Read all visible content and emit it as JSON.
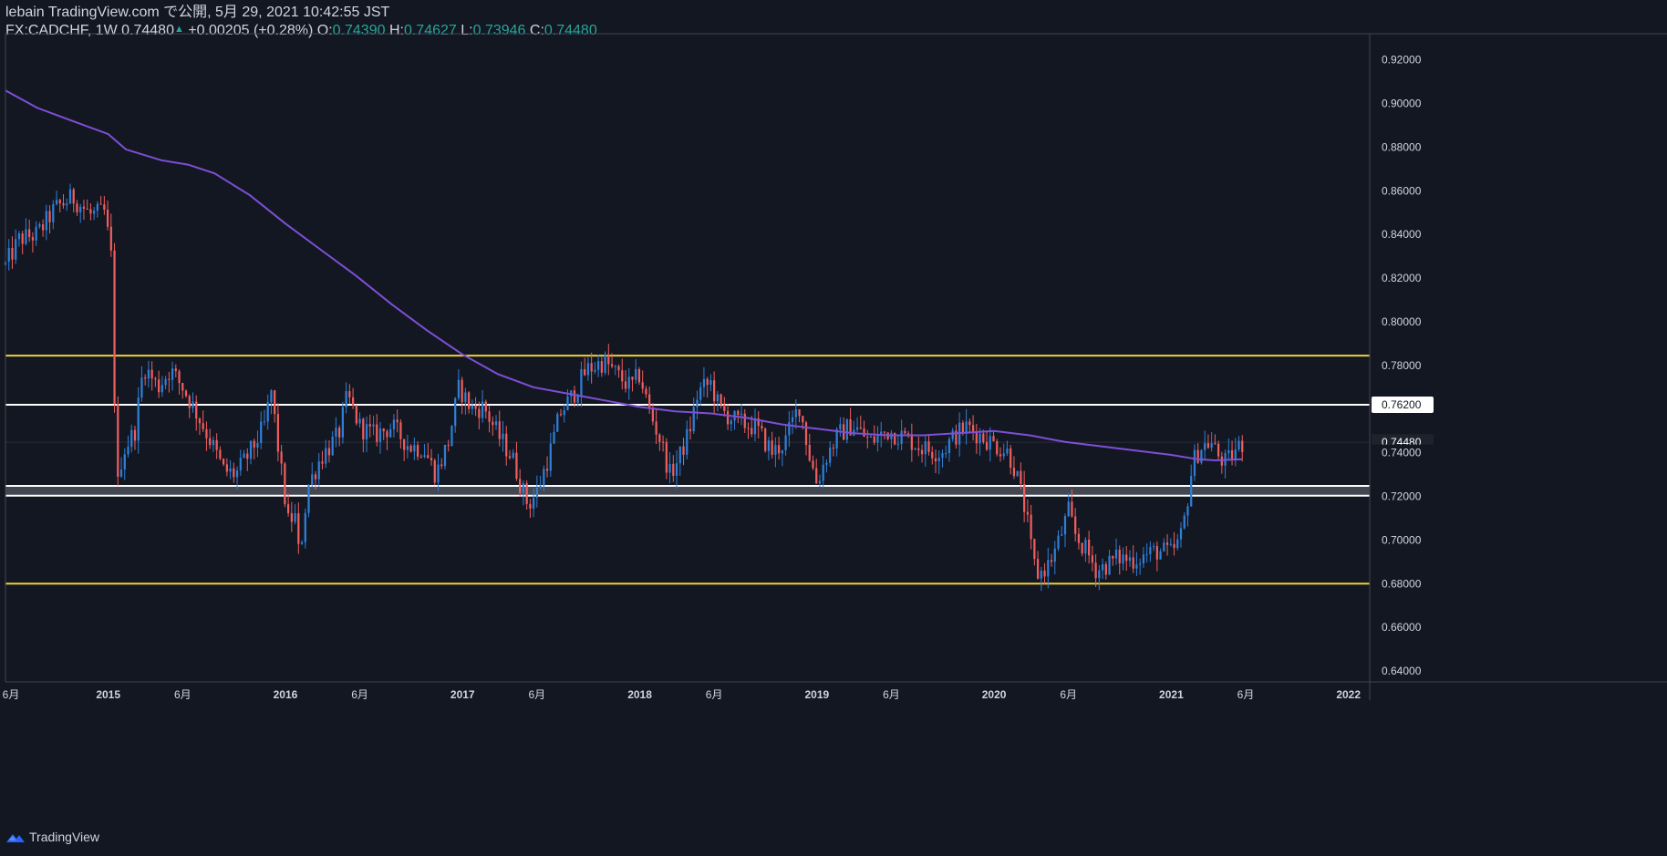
{
  "header": {
    "line1": "lebain TradingView.com で公開, 5月 29, 2021 10:42:55 JST",
    "symbol": "FX:CADCHF, 1W",
    "last": "0.74480",
    "change_arrow": "▲",
    "change": "+0.00205 (+0.28%)",
    "o_label": "O:",
    "o_value": "0.74390",
    "h_label": "H:",
    "h_value": "0.74627",
    "l_label": "L:",
    "l_value": "0.73946",
    "c_label": "C:",
    "c_value": "0.74480"
  },
  "footer": {
    "brand": "TradingView"
  },
  "colors": {
    "background": "#131722",
    "up": "#2f7fd6",
    "down": "#ef5e5e",
    "ma": "#7e4fd6",
    "yellow_line": "#f0d03a",
    "white_line": "#ffffff",
    "gray_band": "#6b6f7a",
    "text": "#d1d4dc",
    "accent": "#26a69a"
  },
  "chart_data": {
    "type": "candlestick",
    "title": "FX:CADCHF, 1W",
    "ylim": [
      0.635,
      0.932
    ],
    "y_ticks": [
      "0.92000",
      "0.90000",
      "0.88000",
      "0.86000",
      "0.84000",
      "0.82000",
      "0.80000",
      "0.78000",
      "0.76000",
      "0.74000",
      "0.72000",
      "0.70000",
      "0.68000",
      "0.66000",
      "0.64000"
    ],
    "x_ticks": [
      {
        "label": "6月",
        "t": 2014.42
      },
      {
        "label": "2015",
        "t": 2015.0
      },
      {
        "label": "6月",
        "t": 2015.42
      },
      {
        "label": "2016",
        "t": 2016.0
      },
      {
        "label": "6月",
        "t": 2016.42
      },
      {
        "label": "2017",
        "t": 2017.0
      },
      {
        "label": "6月",
        "t": 2017.42
      },
      {
        "label": "2018",
        "t": 2018.0
      },
      {
        "label": "6月",
        "t": 2018.42
      },
      {
        "label": "2019",
        "t": 2019.0
      },
      {
        "label": "6月",
        "t": 2019.42
      },
      {
        "label": "2020",
        "t": 2020.0
      },
      {
        "label": "6月",
        "t": 2020.42
      },
      {
        "label": "2021",
        "t": 2021.0
      },
      {
        "label": "6月",
        "t": 2021.42
      },
      {
        "label": "2022",
        "t": 2022.0
      }
    ],
    "xlim": [
      2014.42,
      2022.12
    ],
    "price_labels": [
      {
        "value": 0.762,
        "text": "0.76200",
        "style": "white"
      },
      {
        "value": 0.7448,
        "text": "0.74480",
        "style": "dark"
      },
      {
        "value": 0.74,
        "text": "0.74000",
        "style": "plain"
      }
    ],
    "horizontal_lines": [
      {
        "value": 0.7845,
        "color": "yellow"
      },
      {
        "value": 0.762,
        "color": "white"
      },
      {
        "value": 0.7248,
        "color": "white"
      },
      {
        "value": 0.7203,
        "color": "white"
      },
      {
        "value": 0.68,
        "color": "yellow"
      }
    ],
    "band": [
      0.7203,
      0.7248
    ],
    "ma_series": {
      "name": "",
      "points": [
        [
          2014.42,
          0.906
        ],
        [
          2014.6,
          0.898
        ],
        [
          2014.8,
          0.892
        ],
        [
          2015.0,
          0.886
        ],
        [
          2015.1,
          0.879
        ],
        [
          2015.3,
          0.874
        ],
        [
          2015.45,
          0.872
        ],
        [
          2015.6,
          0.868
        ],
        [
          2015.8,
          0.858
        ],
        [
          2016.0,
          0.845
        ],
        [
          2016.2,
          0.833
        ],
        [
          2016.4,
          0.821
        ],
        [
          2016.6,
          0.808
        ],
        [
          2016.8,
          0.796
        ],
        [
          2017.0,
          0.785
        ],
        [
          2017.2,
          0.776
        ],
        [
          2017.4,
          0.77
        ],
        [
          2017.6,
          0.767
        ],
        [
          2017.8,
          0.764
        ],
        [
          2018.0,
          0.761
        ],
        [
          2018.2,
          0.759
        ],
        [
          2018.4,
          0.758
        ],
        [
          2018.6,
          0.756
        ],
        [
          2018.8,
          0.753
        ],
        [
          2019.0,
          0.751
        ],
        [
          2019.2,
          0.749
        ],
        [
          2019.4,
          0.748
        ],
        [
          2019.6,
          0.748
        ],
        [
          2019.8,
          0.749
        ],
        [
          2020.0,
          0.75
        ],
        [
          2020.2,
          0.748
        ],
        [
          2020.4,
          0.745
        ],
        [
          2020.6,
          0.743
        ],
        [
          2020.8,
          0.741
        ],
        [
          2021.0,
          0.739
        ],
        [
          2021.15,
          0.737
        ],
        [
          2021.25,
          0.7365
        ],
        [
          2021.4,
          0.737
        ]
      ]
    },
    "anchors": [
      [
        2014.42,
        0.826
      ],
      [
        2014.5,
        0.838
      ],
      [
        2014.6,
        0.84
      ],
      [
        2014.7,
        0.852
      ],
      [
        2014.8,
        0.857
      ],
      [
        2014.9,
        0.849
      ],
      [
        2014.98,
        0.85
      ],
      [
        2015.03,
        0.822
      ],
      [
        2015.04,
        0.717
      ],
      [
        2015.08,
        0.74
      ],
      [
        2015.15,
        0.75
      ],
      [
        2015.2,
        0.78
      ],
      [
        2015.28,
        0.77
      ],
      [
        2015.35,
        0.778
      ],
      [
        2015.42,
        0.77
      ],
      [
        2015.5,
        0.758
      ],
      [
        2015.58,
        0.745
      ],
      [
        2015.65,
        0.732
      ],
      [
        2015.72,
        0.73
      ],
      [
        2015.8,
        0.74
      ],
      [
        2015.88,
        0.752
      ],
      [
        2015.92,
        0.768
      ],
      [
        2015.97,
        0.735
      ],
      [
        2016.02,
        0.706
      ],
      [
        2016.05,
        0.714
      ],
      [
        2016.08,
        0.69
      ],
      [
        2016.1,
        0.708
      ],
      [
        2016.13,
        0.725
      ],
      [
        2016.2,
        0.738
      ],
      [
        2016.3,
        0.748
      ],
      [
        2016.35,
        0.766
      ],
      [
        2016.42,
        0.752
      ],
      [
        2016.5,
        0.748
      ],
      [
        2016.6,
        0.752
      ],
      [
        2016.7,
        0.743
      ],
      [
        2016.78,
        0.742
      ],
      [
        2016.85,
        0.73
      ],
      [
        2016.92,
        0.745
      ],
      [
        2016.98,
        0.77
      ],
      [
        2017.05,
        0.76
      ],
      [
        2017.12,
        0.761
      ],
      [
        2017.2,
        0.748
      ],
      [
        2017.28,
        0.738
      ],
      [
        2017.33,
        0.725
      ],
      [
        2017.37,
        0.716
      ],
      [
        2017.42,
        0.722
      ],
      [
        2017.5,
        0.742
      ],
      [
        2017.55,
        0.758
      ],
      [
        2017.62,
        0.766
      ],
      [
        2017.7,
        0.778
      ],
      [
        2017.8,
        0.782
      ],
      [
        2017.88,
        0.775
      ],
      [
        2017.95,
        0.77
      ],
      [
        2018.0,
        0.776
      ],
      [
        2018.05,
        0.76
      ],
      [
        2018.12,
        0.745
      ],
      [
        2018.17,
        0.73
      ],
      [
        2018.22,
        0.737
      ],
      [
        2018.28,
        0.75
      ],
      [
        2018.33,
        0.768
      ],
      [
        2018.4,
        0.772
      ],
      [
        2018.45,
        0.76
      ],
      [
        2018.55,
        0.754
      ],
      [
        2018.65,
        0.752
      ],
      [
        2018.75,
        0.74
      ],
      [
        2018.82,
        0.745
      ],
      [
        2018.9,
        0.762
      ],
      [
        2018.96,
        0.738
      ],
      [
        2019.0,
        0.726
      ],
      [
        2019.05,
        0.738
      ],
      [
        2019.12,
        0.748
      ],
      [
        2019.2,
        0.753
      ],
      [
        2019.3,
        0.745
      ],
      [
        2019.4,
        0.75
      ],
      [
        2019.5,
        0.747
      ],
      [
        2019.6,
        0.742
      ],
      [
        2019.7,
        0.74
      ],
      [
        2019.78,
        0.748
      ],
      [
        2019.85,
        0.752
      ],
      [
        2019.92,
        0.748
      ],
      [
        2020.0,
        0.744
      ],
      [
        2020.08,
        0.74
      ],
      [
        2020.12,
        0.732
      ],
      [
        2020.18,
        0.712
      ],
      [
        2020.22,
        0.69
      ],
      [
        2020.25,
        0.684
      ],
      [
        2020.3,
        0.688
      ],
      [
        2020.35,
        0.696
      ],
      [
        2020.42,
        0.713
      ],
      [
        2020.46,
        0.702
      ],
      [
        2020.52,
        0.695
      ],
      [
        2020.58,
        0.686
      ],
      [
        2020.62,
        0.688
      ],
      [
        2020.7,
        0.692
      ],
      [
        2020.78,
        0.691
      ],
      [
        2020.85,
        0.693
      ],
      [
        2020.92,
        0.695
      ],
      [
        2021.0,
        0.694
      ],
      [
        2021.05,
        0.7
      ],
      [
        2021.08,
        0.712
      ],
      [
        2021.12,
        0.735
      ],
      [
        2021.16,
        0.742
      ],
      [
        2021.22,
        0.745
      ],
      [
        2021.27,
        0.738
      ],
      [
        2021.31,
        0.735
      ],
      [
        2021.36,
        0.741
      ],
      [
        2021.41,
        0.7448
      ]
    ]
  }
}
